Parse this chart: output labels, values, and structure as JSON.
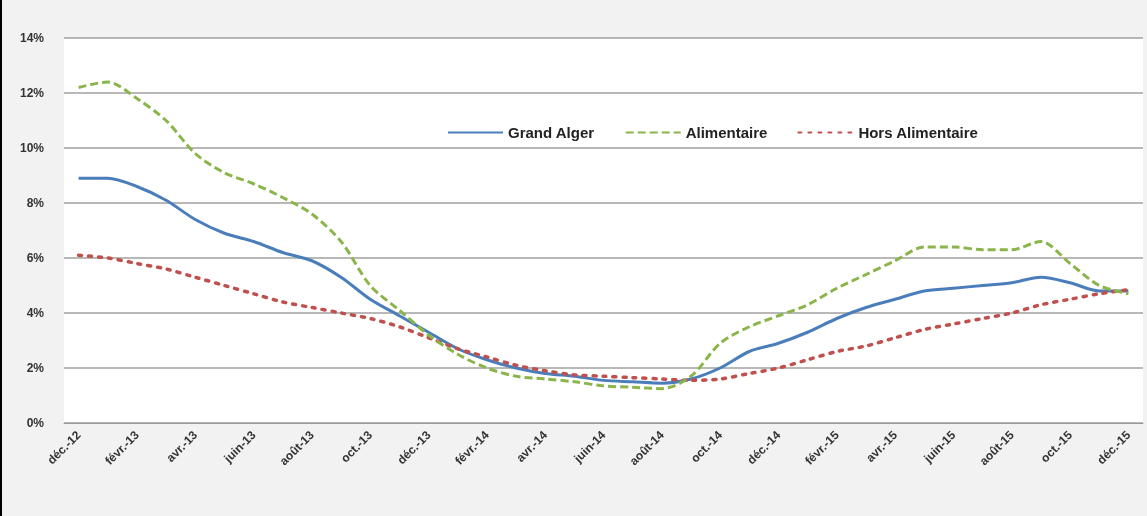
{
  "chart_data": {
    "type": "line",
    "categories": [
      "déc.-12",
      null,
      "févr.-13",
      null,
      "avr.-13",
      null,
      "juin-13",
      null,
      "août-13",
      null,
      "oct.-13",
      null,
      "déc.-13",
      null,
      "févr.-14",
      null,
      "avr.-14",
      null,
      "juin-14",
      null,
      "août-14",
      null,
      "oct.-14",
      null,
      "déc.-14",
      null,
      "févr.-15",
      null,
      "avr.-15",
      null,
      "juin-15",
      null,
      "août-15",
      null,
      "oct.-15",
      null,
      "déc.-15"
    ],
    "series": [
      {
        "name": "Grand Alger",
        "color": "#4a7ebb",
        "line_style": "solid",
        "values": [
          8.9,
          8.9,
          8.6,
          8.1,
          7.4,
          6.9,
          6.6,
          6.2,
          5.9,
          5.3,
          4.5,
          3.9,
          3.3,
          2.7,
          2.3,
          2.0,
          1.8,
          1.7,
          1.55,
          1.5,
          1.45,
          1.6,
          2.0,
          2.6,
          2.9,
          3.3,
          3.8,
          4.2,
          4.5,
          4.8,
          4.9,
          5.0,
          5.1,
          5.3,
          5.1,
          4.8,
          4.8
        ]
      },
      {
        "name": "Alimentaire",
        "color": "#8ab54a",
        "line_style": "dashed",
        "values": [
          12.2,
          12.4,
          11.8,
          11.0,
          9.8,
          9.1,
          8.7,
          8.2,
          7.6,
          6.6,
          5.0,
          4.1,
          3.2,
          2.5,
          2.0,
          1.7,
          1.6,
          1.5,
          1.35,
          1.3,
          1.25,
          1.7,
          2.9,
          3.5,
          3.9,
          4.3,
          4.9,
          5.4,
          5.9,
          6.4,
          6.4,
          6.3,
          6.3,
          6.6,
          5.8,
          5.0,
          4.7
        ]
      },
      {
        "name": "Hors Alimentaire",
        "color": "#c0504d",
        "line_style": "dotted",
        "values": [
          6.1,
          6.0,
          5.8,
          5.6,
          5.3,
          5.0,
          4.7,
          4.4,
          4.2,
          4.0,
          3.8,
          3.5,
          3.1,
          2.7,
          2.4,
          2.1,
          1.9,
          1.75,
          1.7,
          1.65,
          1.6,
          1.55,
          1.6,
          1.8,
          2.0,
          2.3,
          2.6,
          2.8,
          3.1,
          3.4,
          3.6,
          3.8,
          4.0,
          4.3,
          4.5,
          4.7,
          4.85
        ]
      }
    ],
    "ylim": [
      0,
      14
    ],
    "yticks": [
      {
        "value": 0,
        "label": "0%"
      },
      {
        "value": 2,
        "label": "2%"
      },
      {
        "value": 4,
        "label": "4%"
      },
      {
        "value": 6,
        "label": "6%"
      },
      {
        "value": 8,
        "label": "8%"
      },
      {
        "value": 10,
        "label": "10%"
      },
      {
        "value": 12,
        "label": "12%"
      },
      {
        "value": 14,
        "label": "14%"
      }
    ],
    "grid": "y",
    "legend": "top right",
    "marker": "none"
  }
}
